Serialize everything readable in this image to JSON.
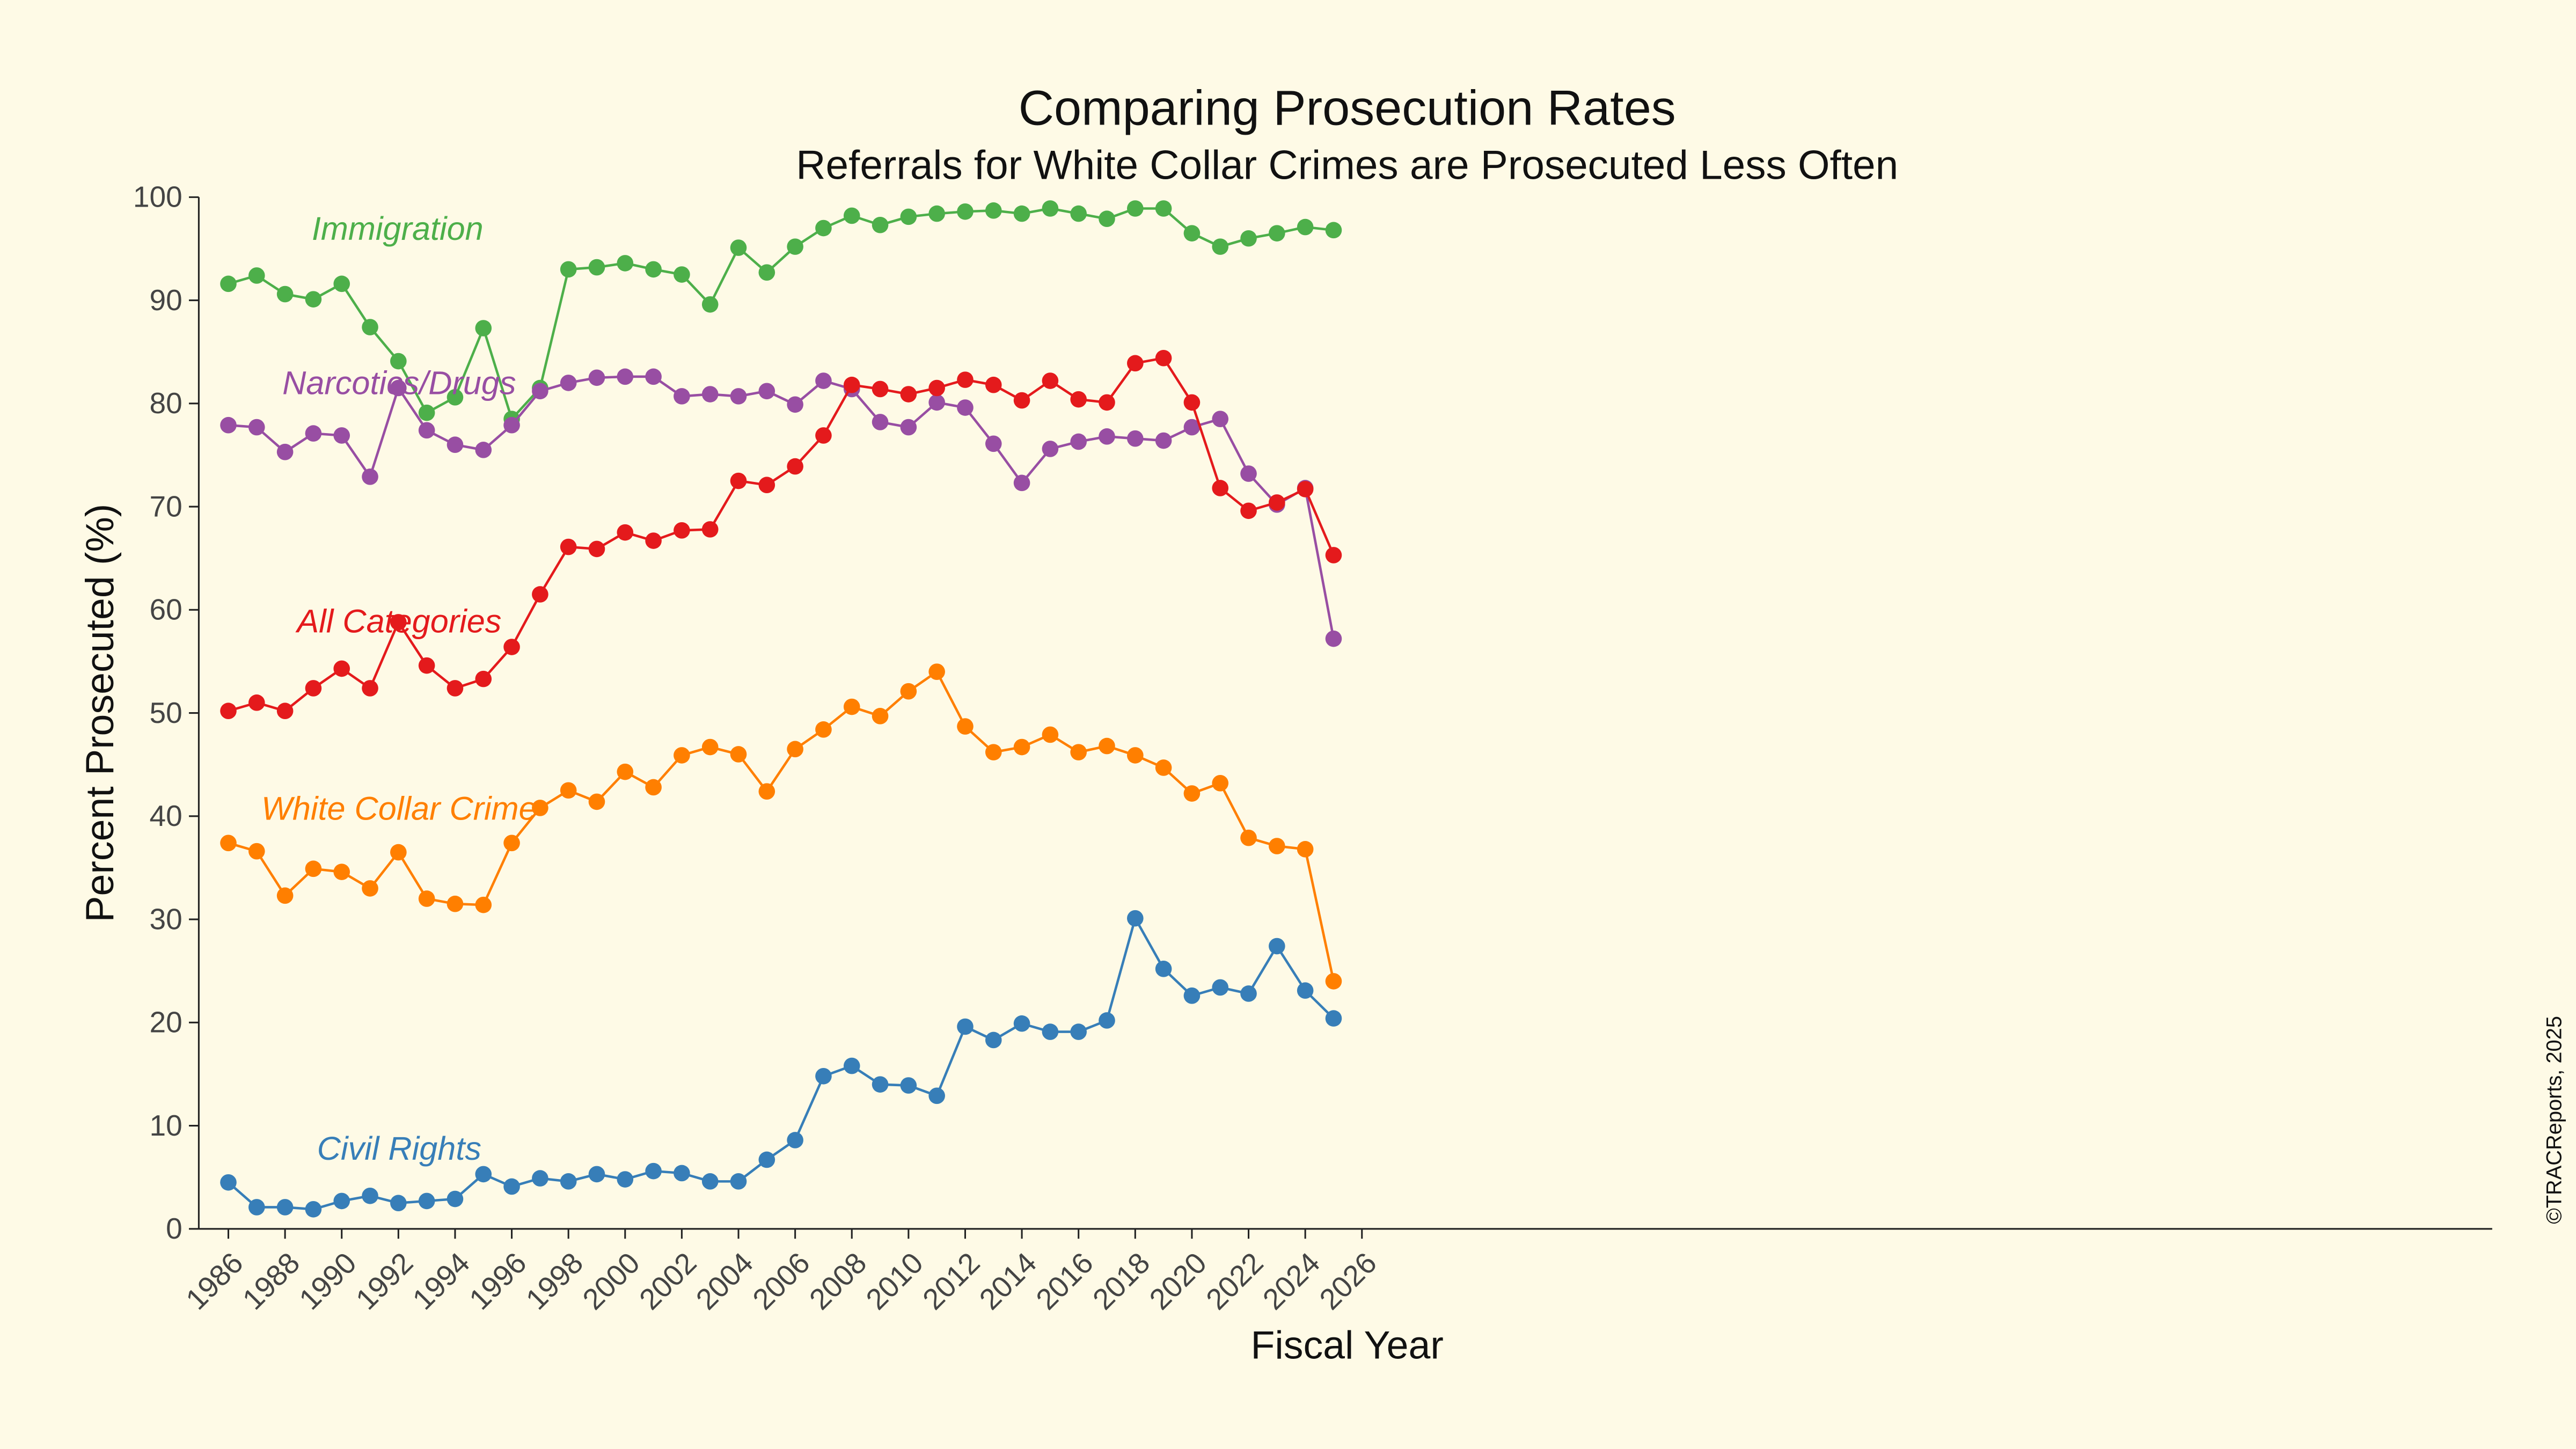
{
  "chart_data": {
    "type": "line",
    "title": "Comparing Prosecution Rates",
    "subtitle": "Referrals for White Collar Crimes are Prosecuted Less Often",
    "xlabel": "Fiscal Year",
    "ylabel": "Percent Prosecuted (%)",
    "xlim": [
      1985.5,
      2026
    ],
    "ylim": [
      0,
      100
    ],
    "xticks": [
      1986,
      1988,
      1990,
      1992,
      1994,
      1996,
      1998,
      2000,
      2002,
      2004,
      2006,
      2008,
      2010,
      2012,
      2014,
      2016,
      2018,
      2020,
      2022,
      2024,
      2026
    ],
    "yticks": [
      0,
      10,
      20,
      30,
      40,
      50,
      60,
      70,
      80,
      90,
      100
    ],
    "grid": false,
    "legend": "inline labels",
    "credit": "©TRACReports, 2025",
    "x": [
      1986,
      1987,
      1988,
      1989,
      1990,
      1991,
      1992,
      1993,
      1994,
      1995,
      1996,
      1997,
      1998,
      1999,
      2000,
      2001,
      2002,
      2003,
      2004,
      2005,
      2006,
      2007,
      2008,
      2009,
      2010,
      2011,
      2012,
      2013,
      2014,
      2015,
      2016,
      2017,
      2018,
      2019,
      2020,
      2021,
      2022,
      2023,
      2024,
      2025
    ],
    "series": [
      {
        "name": "Immigration",
        "color": "#4daf4a",
        "values": [
          91.6,
          92.4,
          90.6,
          90.1,
          91.6,
          87.4,
          84.1,
          79.1,
          80.6,
          87.3,
          78.5,
          81.5,
          93.0,
          93.2,
          93.6,
          93.0,
          92.5,
          89.6,
          95.1,
          92.7,
          95.2,
          97.0,
          98.2,
          97.3,
          98.1,
          98.4,
          98.6,
          98.7,
          98.4,
          98.9,
          98.4,
          97.9,
          98.9,
          98.9,
          96.5,
          95.2,
          96.0,
          96.5,
          97.1,
          96.8
        ]
      },
      {
        "name": "Narcotics/Drugs",
        "color": "#984ea3",
        "values": [
          77.9,
          77.7,
          75.3,
          77.1,
          76.9,
          72.9,
          81.5,
          77.4,
          76.0,
          75.5,
          77.9,
          81.2,
          82.0,
          82.5,
          82.6,
          82.6,
          80.7,
          80.9,
          80.7,
          81.2,
          79.9,
          82.2,
          81.4,
          78.2,
          77.7,
          80.1,
          79.6,
          76.1,
          72.3,
          75.6,
          76.3,
          76.8,
          76.6,
          76.4,
          77.7,
          78.5,
          73.2,
          70.2,
          71.8,
          57.2
        ]
      },
      {
        "name": "All Categories",
        "color": "#e41a1c",
        "values": [
          50.2,
          51.0,
          50.2,
          52.4,
          54.3,
          52.4,
          58.8,
          54.6,
          52.4,
          53.3,
          56.4,
          61.5,
          66.1,
          65.9,
          67.5,
          66.7,
          67.7,
          67.8,
          72.5,
          72.1,
          73.9,
          76.9,
          81.8,
          81.4,
          80.9,
          81.5,
          82.3,
          81.8,
          80.3,
          82.2,
          80.4,
          80.1,
          83.9,
          84.4,
          80.1,
          71.8,
          69.6,
          70.4,
          71.7,
          65.3
        ]
      },
      {
        "name": "White Collar Crime",
        "color": "#ff7f00",
        "values": [
          37.4,
          36.6,
          32.3,
          34.9,
          34.6,
          33.0,
          36.5,
          32.0,
          31.5,
          31.4,
          37.4,
          40.8,
          42.5,
          41.4,
          44.3,
          42.8,
          45.9,
          46.7,
          46.0,
          42.4,
          46.5,
          48.4,
          50.6,
          49.7,
          52.1,
          54.0,
          48.7,
          46.2,
          46.7,
          47.9,
          46.2,
          46.8,
          45.9,
          44.7,
          42.2,
          43.2,
          37.9,
          37.1,
          36.8,
          24.0
        ]
      },
      {
        "name": "Civil Rights",
        "color": "#377eb8",
        "values": [
          4.5,
          2.1,
          2.1,
          1.9,
          2.7,
          3.2,
          2.5,
          2.7,
          2.9,
          5.3,
          4.1,
          4.9,
          4.6,
          5.3,
          4.8,
          5.6,
          5.4,
          4.6,
          4.6,
          6.7,
          8.6,
          14.8,
          15.8,
          14.0,
          13.9,
          12.9,
          19.6,
          18.3,
          19.9,
          19.1,
          19.1,
          20.2,
          30.1,
          25.2,
          22.6,
          23.4,
          22.8,
          27.4,
          23.1,
          20.4
        ]
      }
    ]
  }
}
